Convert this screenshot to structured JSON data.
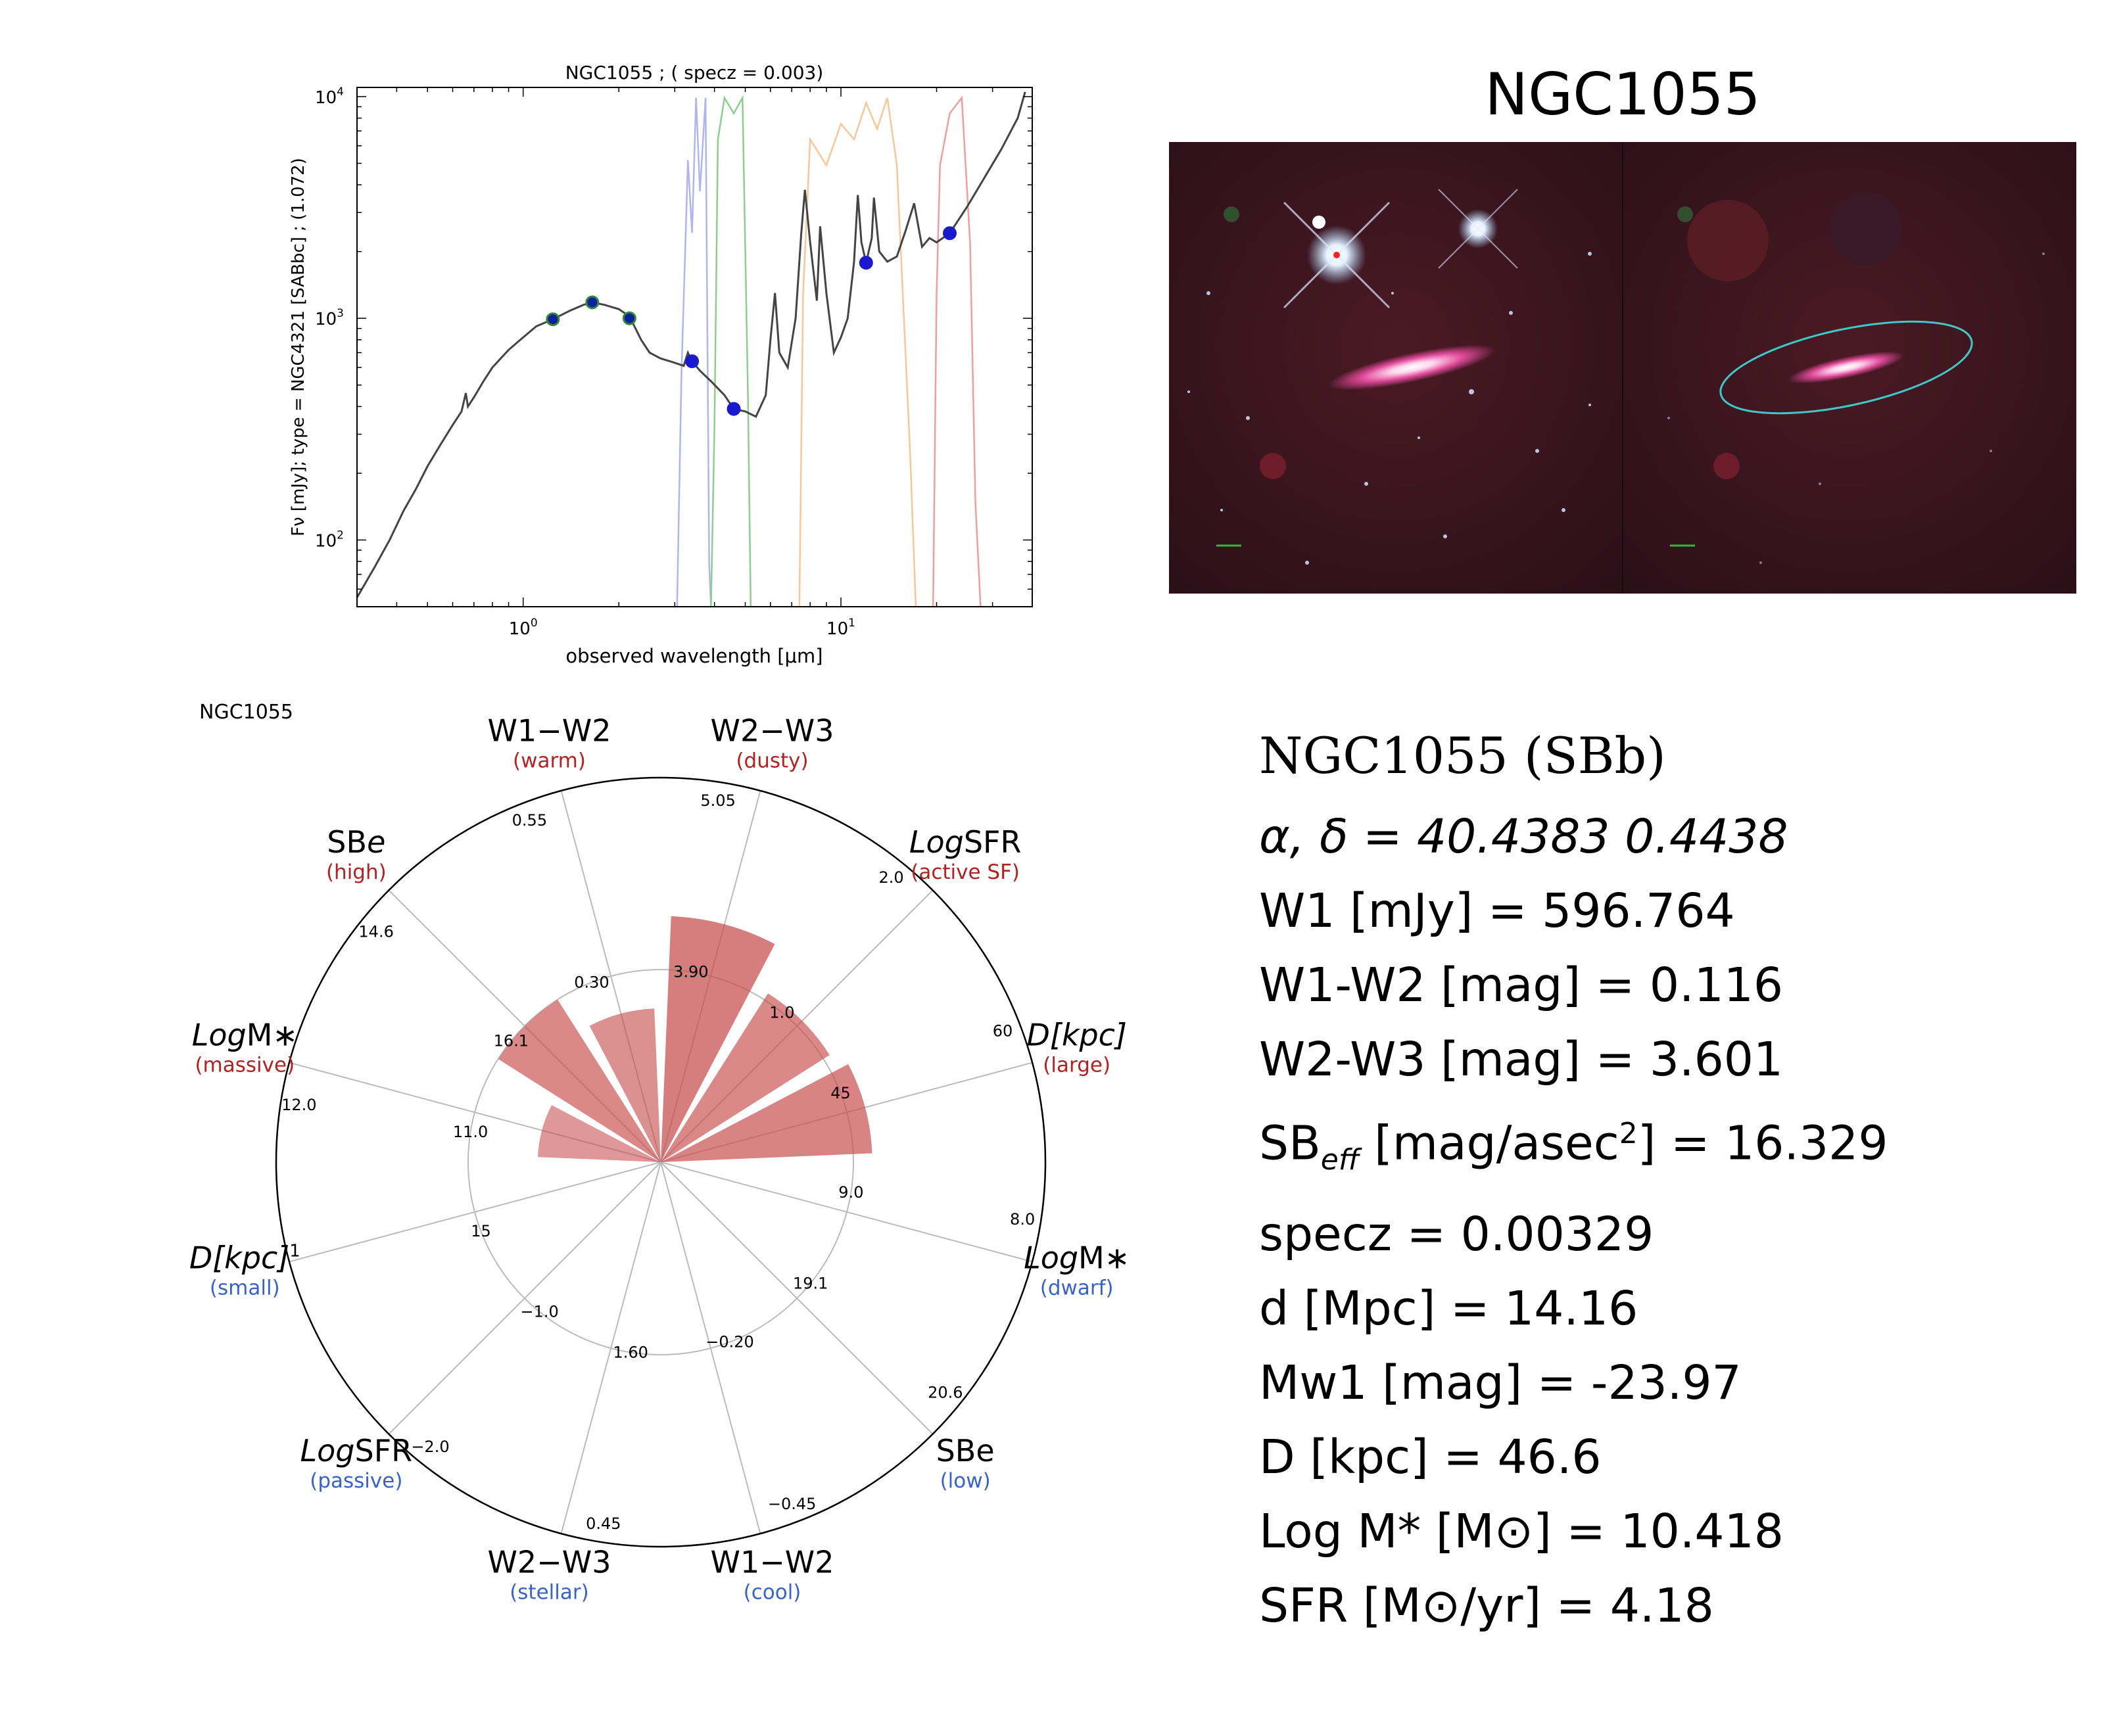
{
  "sed": {
    "title": "NGC1055 ; ( specz = 0.003)",
    "ylabel": "Fν [mJy];  type = NGC4321 [SABbc] ; (1.072)",
    "xlabel": "observed wavelength [μm]",
    "x_ticks": [
      {
        "label": "10",
        "exp": "0",
        "value": 1
      },
      {
        "label": "10",
        "exp": "1",
        "value": 10
      }
    ],
    "y_ticks": [
      {
        "label": "10",
        "exp": "2",
        "value": 100
      },
      {
        "label": "10",
        "exp": "3",
        "value": 1000
      },
      {
        "label": "10",
        "exp": "4",
        "value": 10000
      }
    ],
    "xlim": [
      0.3,
      40
    ],
    "ylim": [
      50,
      11000
    ],
    "photometry": [
      {
        "x": 1.24,
        "y": 990,
        "color": "#10209a",
        "edge": "#2e8b3a"
      },
      {
        "x": 1.65,
        "y": 1180,
        "color": "#10209a",
        "edge": "#2e8b3a"
      },
      {
        "x": 2.16,
        "y": 1000,
        "color": "#10209a",
        "edge": "#2e8b3a"
      },
      {
        "x": 3.4,
        "y": 640,
        "color": "#1a1acc",
        "edge": "#1a1acc"
      },
      {
        "x": 4.6,
        "y": 390,
        "color": "#1a1acc",
        "edge": "#1a1acc"
      },
      {
        "x": 12.0,
        "y": 1780,
        "color": "#1a1acc",
        "edge": "#1a1acc"
      },
      {
        "x": 22.0,
        "y": 2420,
        "color": "#1a1acc",
        "edge": "#1a1acc"
      }
    ],
    "template": [
      [
        0.3,
        55
      ],
      [
        0.34,
        75
      ],
      [
        0.38,
        100
      ],
      [
        0.42,
        135
      ],
      [
        0.46,
        170
      ],
      [
        0.5,
        215
      ],
      [
        0.55,
        270
      ],
      [
        0.6,
        330
      ],
      [
        0.64,
        380
      ],
      [
        0.66,
        460
      ],
      [
        0.67,
        400
      ],
      [
        0.7,
        440
      ],
      [
        0.75,
        520
      ],
      [
        0.8,
        600
      ],
      [
        0.9,
        720
      ],
      [
        1.0,
        820
      ],
      [
        1.1,
        920
      ],
      [
        1.24,
        990
      ],
      [
        1.4,
        1080
      ],
      [
        1.55,
        1150
      ],
      [
        1.65,
        1180
      ],
      [
        1.8,
        1150
      ],
      [
        2.0,
        1100
      ],
      [
        2.16,
        1020
      ],
      [
        2.35,
        800
      ],
      [
        2.5,
        700
      ],
      [
        2.7,
        660
      ],
      [
        3.0,
        630
      ],
      [
        3.2,
        610
      ],
      [
        3.3,
        700
      ],
      [
        3.4,
        640
      ],
      [
        3.6,
        580
      ],
      [
        3.9,
        520
      ],
      [
        4.3,
        450
      ],
      [
        4.6,
        390
      ],
      [
        5.0,
        380
      ],
      [
        5.4,
        360
      ],
      [
        5.8,
        450
      ],
      [
        6.0,
        800
      ],
      [
        6.2,
        1300
      ],
      [
        6.4,
        700
      ],
      [
        6.8,
        600
      ],
      [
        7.2,
        1000
      ],
      [
        7.5,
        2400
      ],
      [
        7.7,
        3800
      ],
      [
        8.0,
        2200
      ],
      [
        8.4,
        1200
      ],
      [
        8.6,
        2600
      ],
      [
        9.0,
        1300
      ],
      [
        9.5,
        700
      ],
      [
        10.0,
        820
      ],
      [
        10.5,
        1000
      ],
      [
        11.0,
        1800
      ],
      [
        11.3,
        3600
      ],
      [
        11.6,
        2200
      ],
      [
        12.0,
        1780
      ],
      [
        12.5,
        2300
      ],
      [
        12.7,
        3500
      ],
      [
        13.2,
        2000
      ],
      [
        14.0,
        1800
      ],
      [
        15.0,
        1900
      ],
      [
        16.0,
        2500
      ],
      [
        17.0,
        3300
      ],
      [
        18.0,
        2100
      ],
      [
        19.0,
        2300
      ],
      [
        20.0,
        2200
      ],
      [
        22.0,
        2420
      ],
      [
        25.0,
        3200
      ],
      [
        28.0,
        4200
      ],
      [
        32.0,
        5800
      ],
      [
        36.0,
        8000
      ],
      [
        38.0,
        10500
      ]
    ],
    "filters": [
      {
        "color": "#b0b5ee",
        "pts": [
          [
            3.05,
            0
          ],
          [
            3.15,
            0.45
          ],
          [
            3.3,
            0.86
          ],
          [
            3.4,
            0.72
          ],
          [
            3.5,
            0.98
          ],
          [
            3.6,
            0.8
          ],
          [
            3.75,
            0.98
          ],
          [
            3.85,
            0.08
          ],
          [
            3.9,
            0
          ]
        ]
      },
      {
        "color": "#8fcc8f",
        "pts": [
          [
            3.9,
            0
          ],
          [
            4.0,
            0.35
          ],
          [
            4.1,
            0.9
          ],
          [
            4.3,
            0.98
          ],
          [
            4.6,
            0.95
          ],
          [
            4.9,
            0.98
          ],
          [
            5.1,
            0.4
          ],
          [
            5.2,
            0
          ]
        ]
      },
      {
        "color": "#f7c79a",
        "pts": [
          [
            7.4,
            0
          ],
          [
            7.6,
            0.6
          ],
          [
            8.0,
            0.9
          ],
          [
            9.0,
            0.85
          ],
          [
            10.0,
            0.93
          ],
          [
            11.0,
            0.9
          ],
          [
            12.0,
            0.97
          ],
          [
            13.0,
            0.92
          ],
          [
            14.0,
            0.98
          ],
          [
            15.0,
            0.85
          ],
          [
            16.5,
            0.3
          ],
          [
            17.2,
            0
          ]
        ]
      },
      {
        "color": "#f29d9d",
        "pts": [
          [
            19.5,
            0
          ],
          [
            20.0,
            0.6
          ],
          [
            20.5,
            0.85
          ],
          [
            22.0,
            0.95
          ],
          [
            24.0,
            0.98
          ],
          [
            25.5,
            0.7
          ],
          [
            26.5,
            0.2
          ],
          [
            27.5,
            0
          ]
        ]
      }
    ]
  },
  "image_title": "NGC1055",
  "polar": {
    "name": "NGC1055",
    "spokes": [
      {
        "label": "W1−W2",
        "sub": "(warm)",
        "sub_color": "#b22222",
        "ticks": [
          "0.30",
          "0.55"
        ],
        "value": 0.4
      },
      {
        "label": "W2−W3",
        "sub": "(dusty)",
        "sub_color": "#b22222",
        "ticks": [
          "3.90",
          "5.05"
        ],
        "value": 0.64
      },
      {
        "label": "LogSFR",
        "italic_prefix": "Log",
        "rest": "SFR",
        "sub": "(active SF)",
        "sub_color": "#b22222",
        "ticks": [
          "1.0",
          "2.0"
        ],
        "value": 0.52
      },
      {
        "label": "D[kpc]",
        "italic_all": true,
        "sub": "(large)",
        "sub_color": "#b22222",
        "ticks": [
          "45",
          "60"
        ],
        "value": 0.55
      },
      {
        "label": "LogM*",
        "italic_prefix": "Log",
        "rest": "M∗",
        "sub": "(dwarf)",
        "sub_color": "#3a63c8",
        "ticks": [
          "9.0",
          "8.0"
        ],
        "value": 0
      },
      {
        "label": "SBe",
        "sub": "(low)",
        "sub_color": "#3a63c8",
        "ticks": [
          "19.1",
          "20.6"
        ],
        "value": 0
      },
      {
        "label": "W1−W2",
        "sub": "(cool)",
        "sub_color": "#3a63c8",
        "ticks": [
          "−0.20",
          "−0.45"
        ],
        "value": 0
      },
      {
        "label": "W2−W3",
        "sub": "(stellar)",
        "sub_color": "#3a63c8",
        "ticks": [
          "1.60",
          "0.45"
        ],
        "value": 0
      },
      {
        "label": "LogSFR",
        "italic_prefix": "Log",
        "rest": "SFR",
        "sub": "(passive)",
        "sub_color": "#3a63c8",
        "ticks": [
          "−1.0",
          "−2.0"
        ],
        "value": 0
      },
      {
        "label": "D[kpc]",
        "italic_all": true,
        "sup": "1",
        "sub": "(small)",
        "sub_color": "#3a63c8",
        "ticks": [
          "15",
          ""
        ],
        "value": 0
      },
      {
        "label": "LogM*",
        "italic_prefix": "Log",
        "rest": "M∗",
        "sub": "(massive)",
        "sub_color": "#b22222",
        "ticks": [
          "11.0",
          "12.0"
        ],
        "value": 0.32
      },
      {
        "label": "SBe",
        "italic_suffix": "e",
        "sub": "(high)",
        "sub_color": "#b22222",
        "ticks": [
          "16.1",
          "14.6"
        ],
        "value": 0.5
      }
    ]
  },
  "info": {
    "heading": "NGC1055  (SBb)",
    "coords": "α, δ = 40.4383 0.4438",
    "w1": "W1 [mJy] = 596.764",
    "w1w2": "W1-W2 [mag] = 0.116",
    "w2w3": "W2-W3 [mag] = 3.601",
    "sb_pre": "SB",
    "sb_sub": "eff",
    "sb_mid": " [mag/asec",
    "sb_sup": "2",
    "sb_post": "] = 16.329",
    "specz": "specz = 0.00329",
    "d": "d [Mpc] = 14.16",
    "mw1": "Mw1 [mag] = -23.97",
    "D": "D [kpc] = 46.6",
    "logm": "Log M* [M⊙] = 10.418",
    "sfr": "SFR [M⊙/yr] = 4.18"
  },
  "colors": {
    "bar_fill": "#c85050",
    "grid": "#bbbbbb",
    "red_label": "#b22222",
    "blue_label": "#3a63c8"
  }
}
